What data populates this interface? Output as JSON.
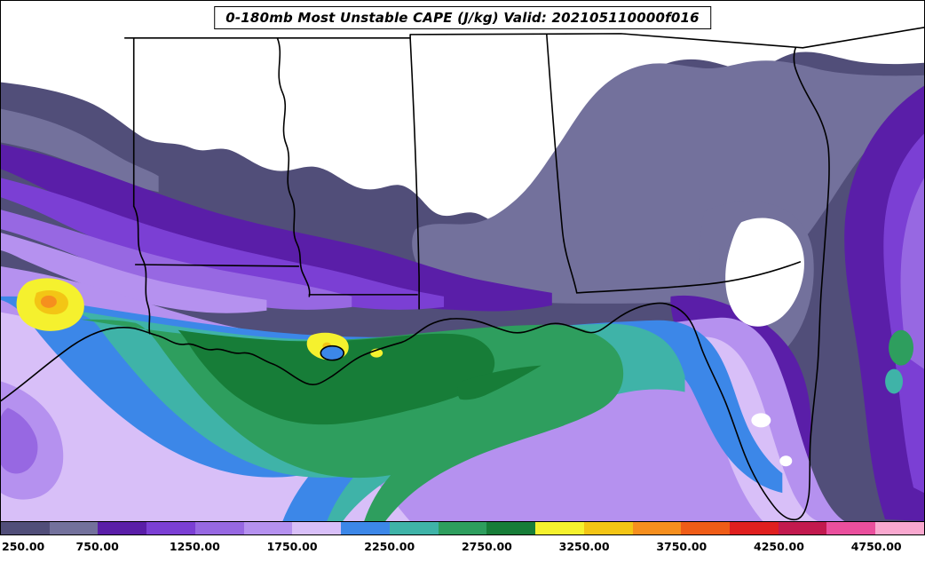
{
  "title": "0-180mb Most Unstable CAPE (J/kg) Valid: 202105110000f016",
  "map": {
    "region": "Southeastern United States and northern Gulf of Mexico",
    "states_outlined": [
      "Texas",
      "Arkansas",
      "Louisiana",
      "Mississippi",
      "Alabama",
      "Tennessee",
      "Georgia",
      "Florida"
    ],
    "background_color": "#ffffff",
    "frame_color": "#000000",
    "border_line_color": "#000000"
  },
  "colorbar": {
    "min": 250,
    "max": 5000,
    "interval": 250,
    "tick_labels": [
      "250.00",
      "750.00",
      "1250.00",
      "1750.00",
      "2250.00",
      "2750.00",
      "3250.00",
      "3750.00",
      "4250.00",
      "4750.00"
    ],
    "tick_values": [
      250,
      750,
      1250,
      1750,
      2250,
      2750,
      3250,
      3750,
      4250,
      4750
    ],
    "colors": [
      "#514e79",
      "#73719c",
      "#5a1ea8",
      "#7b3fd4",
      "#9768e2",
      "#b591ef",
      "#d8bff8",
      "#3c87e8",
      "#3fb3a8",
      "#2e9e5e",
      "#177d38",
      "#f5f12e",
      "#f3c515",
      "#f68f1e",
      "#ef5c17",
      "#e01f1f",
      "#c2194e",
      "#ea4f9d",
      "#f9a8cf"
    ]
  },
  "chart_data": {
    "type": "heatmap",
    "title": "0-180mb Most Unstable CAPE (J/kg) Valid: 202105110000f016",
    "variable": "0-180mb Most Unstable CAPE",
    "units": "J/kg",
    "valid_time": "202105110000f016",
    "levels": [
      250,
      500,
      750,
      1000,
      1250,
      1500,
      1750,
      2000,
      2250,
      2500,
      2750,
      3000,
      3250,
      3500,
      3750,
      4000,
      4250,
      4500,
      4750,
      5000
    ],
    "palette": [
      "#514e79",
      "#73719c",
      "#5a1ea8",
      "#7b3fd4",
      "#9768e2",
      "#b591ef",
      "#d8bff8",
      "#3c87e8",
      "#3fb3a8",
      "#2e9e5e",
      "#177d38",
      "#f5f12e",
      "#f3c515",
      "#f68f1e",
      "#ef5c17",
      "#e01f1f",
      "#c2194e",
      "#ea4f9d",
      "#f9a8cf"
    ],
    "legend_position": "bottom",
    "notable_features": [
      "CAPE below 250 J/kg (white) over northern Mississippi/Alabama, the Tennessee border area and central Florida",
      "Broad 250-1500 J/kg (slate and purple shades) over the inland Southeast, Florida peninsula and western Atlantic",
      "1500-2000 J/kg (light purple/lavender) over the southwestern Gulf of Mexico",
      "2000-3000 J/kg (blue, teal, green) along the Louisiana/Mississippi coast and adjacent Gulf waters",
      "Local maxima 3000-3750 J/kg (yellow/gold/orange) in southeast Texas and south-central Louisiana"
    ]
  }
}
